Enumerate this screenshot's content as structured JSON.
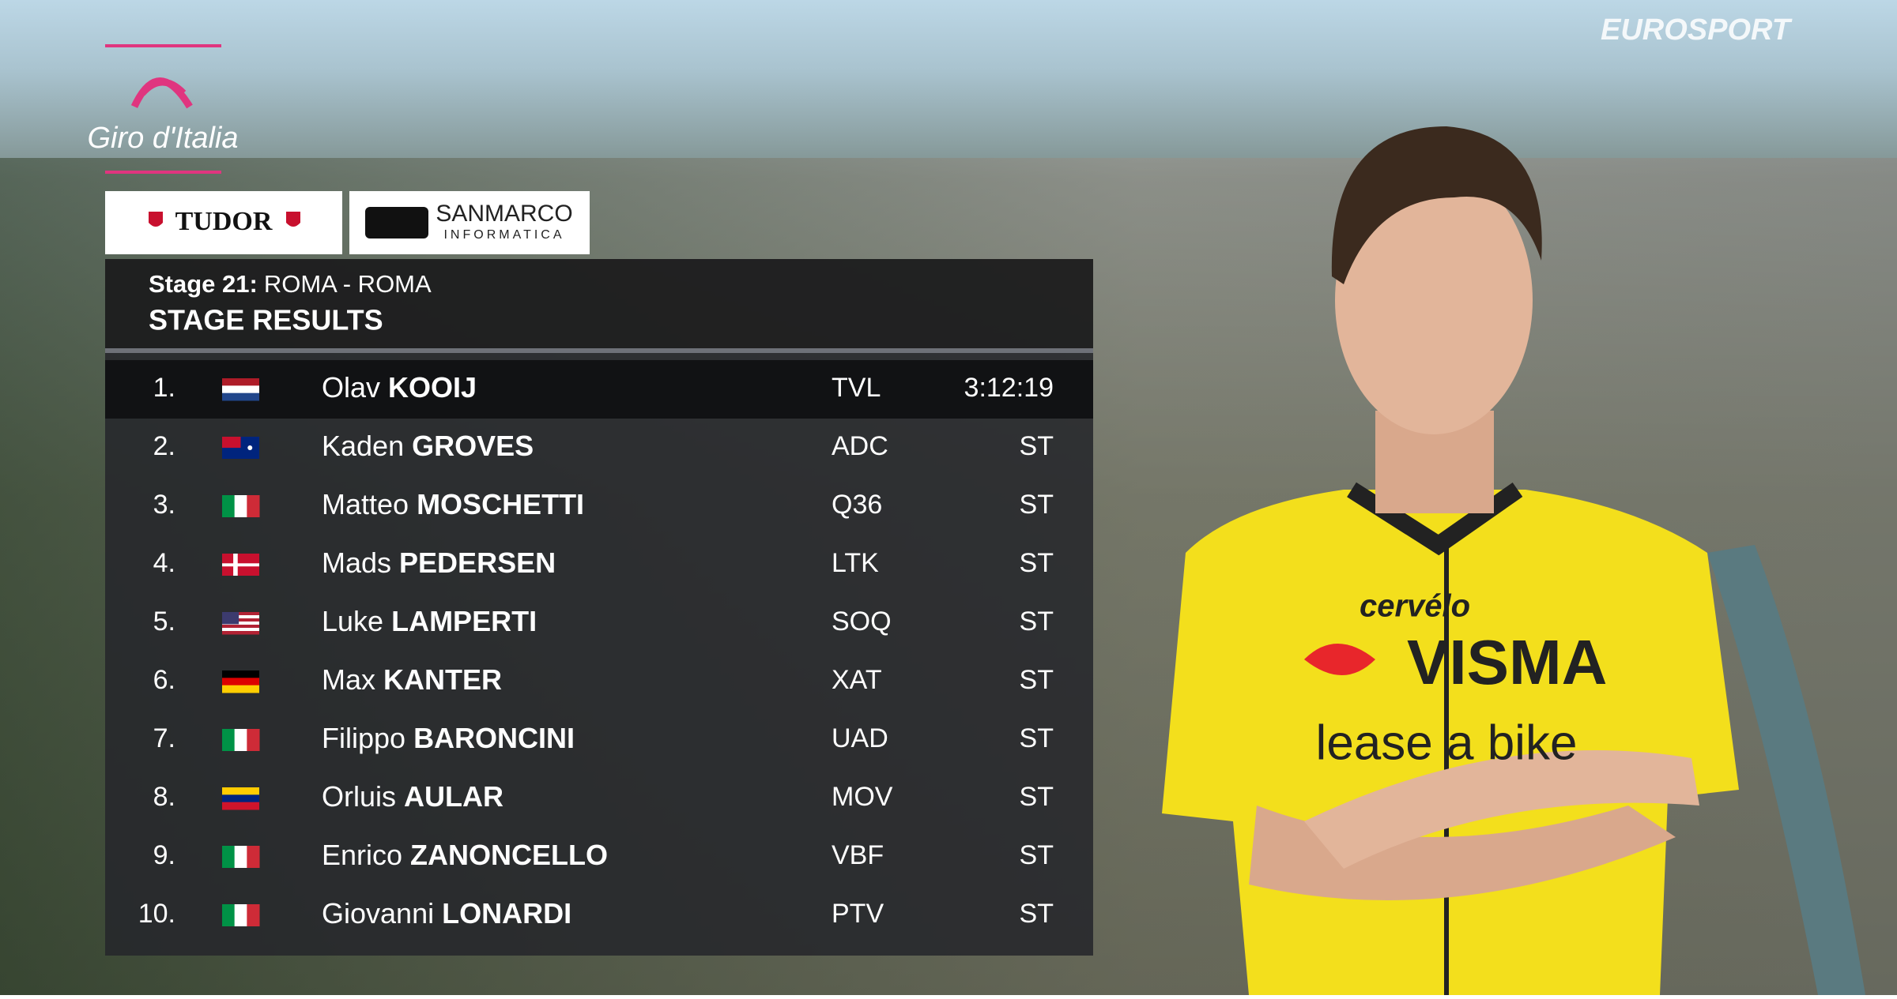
{
  "branding": {
    "race": "Giro d'Italia",
    "sponsor_1": "TUDOR",
    "sponsor_2": "SANMARCO",
    "sponsor_2_sub": "INFORMATICA",
    "broadcaster": "EUROSPORT"
  },
  "header": {
    "stage": "Stage 21:",
    "route": "ROMA - ROMA",
    "title": "STAGE RESULTS"
  },
  "table": {
    "rows": [
      {
        "rank": "1.",
        "first": "Olav",
        "last": "KOOIJ",
        "team": "TVL",
        "time": "3:12:19"
      },
      {
        "rank": "2.",
        "first": "Kaden",
        "last": "GROVES",
        "team": "ADC",
        "time": "ST"
      },
      {
        "rank": "3.",
        "first": "Matteo",
        "last": "MOSCHETTI",
        "team": "Q36",
        "time": "ST"
      },
      {
        "rank": "4.",
        "first": "Mads",
        "last": "PEDERSEN",
        "team": "LTK",
        "time": "ST"
      },
      {
        "rank": "5.",
        "first": "Luke",
        "last": "LAMPERTI",
        "team": "SOQ",
        "time": "ST"
      },
      {
        "rank": "6.",
        "first": "Max",
        "last": "KANTER",
        "team": "XAT",
        "time": "ST"
      },
      {
        "rank": "7.",
        "first": "Filippo",
        "last": "BARONCINI",
        "team": "UAD",
        "time": "ST"
      },
      {
        "rank": "8.",
        "first": "Orluis",
        "last": "AULAR",
        "team": "MOV",
        "time": "ST"
      },
      {
        "rank": "9.",
        "first": "Enrico",
        "last": "ZANONCELLO",
        "team": "VBF",
        "time": "ST"
      },
      {
        "rank": "10.",
        "first": "Giovanni",
        "last": "LONARDI",
        "team": "PTV",
        "time": "ST"
      }
    ]
  },
  "jersey": {
    "brand": "cervélo",
    "main": "VISMA",
    "sub": "lease a bike"
  }
}
